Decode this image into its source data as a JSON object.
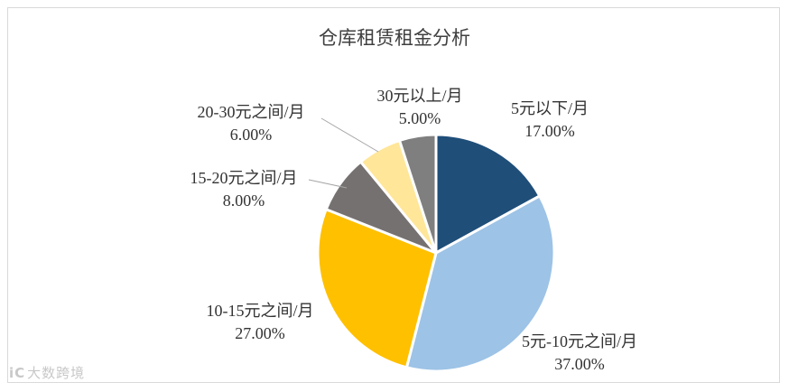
{
  "chart_data": {
    "type": "pie",
    "title": "仓库租赁租金分析",
    "start_angle_deg": 0,
    "direction": "clockwise",
    "slices": [
      {
        "label": "5元以下/月",
        "value": 17.0,
        "display": "17.00%",
        "color": "#1f4e79"
      },
      {
        "label": "5元-10元之间/月",
        "value": 37.0,
        "display": "37.00%",
        "color": "#9dc3e6"
      },
      {
        "label": "10-15元之间/月",
        "value": 27.0,
        "display": "27.00%",
        "color": "#ffc000"
      },
      {
        "label": "15-20元之间/月",
        "value": 8.0,
        "display": "8.00%",
        "color": "#767171"
      },
      {
        "label": "20-30元之间/月",
        "value": 6.0,
        "display": "6.00%",
        "color": "#ffe699"
      },
      {
        "label": "30元以上/月",
        "value": 5.0,
        "display": "5.00%",
        "color": "#7f7f7f"
      }
    ]
  },
  "watermark": {
    "mark": "iC",
    "text": "大数跨境"
  }
}
